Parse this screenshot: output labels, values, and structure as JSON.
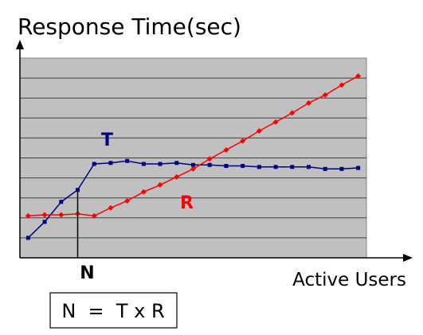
{
  "chart_data": {
    "type": "line",
    "title": "",
    "ylabel": "Response Time(sec)",
    "xlabel": "Active Users",
    "x": [
      1,
      2,
      3,
      4,
      5,
      6,
      7,
      8,
      9,
      10,
      11,
      12,
      13,
      14,
      15,
      16,
      17,
      18,
      19,
      20,
      21
    ],
    "ylim": [
      0,
      10
    ],
    "xlim": [
      0.5,
      21.5
    ],
    "grid": true,
    "series": [
      {
        "name": "T",
        "color": "#000080",
        "marker": "square",
        "values": [
          1.0,
          1.8,
          2.8,
          3.4,
          4.7,
          4.75,
          4.85,
          4.7,
          4.7,
          4.75,
          4.65,
          4.65,
          4.6,
          4.6,
          4.55,
          4.55,
          4.55,
          4.55,
          4.45,
          4.45,
          4.5
        ]
      },
      {
        "name": "R",
        "color": "#ff0000",
        "marker": "diamond",
        "values": [
          2.1,
          2.15,
          2.15,
          2.2,
          2.1,
          2.5,
          2.85,
          3.3,
          3.65,
          4.05,
          4.45,
          4.95,
          5.4,
          5.85,
          6.35,
          6.8,
          7.25,
          7.75,
          8.15,
          8.65,
          9.1
        ]
      }
    ],
    "annotations": {
      "marker_label": "N",
      "marker_x": 4,
      "formula": "N  =  T x R"
    }
  },
  "colors": {
    "plot_background": "#c0c0c0",
    "gridline": "#404040",
    "axis": "#000000",
    "text": "#000000"
  }
}
